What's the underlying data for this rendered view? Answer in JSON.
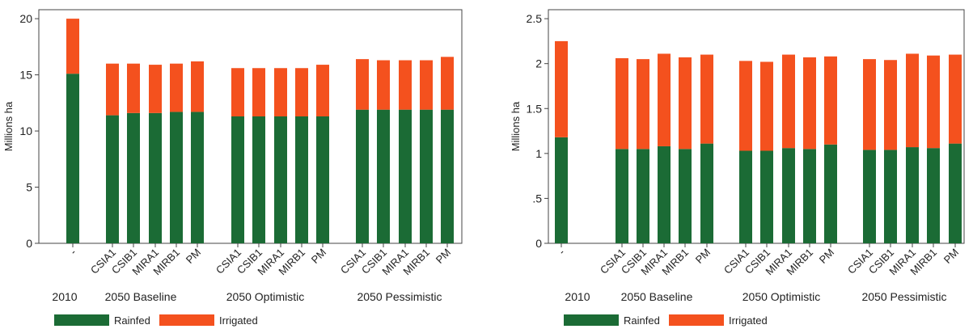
{
  "chart_data": [
    {
      "type": "bar",
      "stacked": true,
      "ylabel": "Millions ha",
      "ylim": [
        0,
        20.8
      ],
      "yticks": [
        "0",
        "5",
        "10",
        "15",
        "20"
      ],
      "ytick_values": [
        0,
        5,
        10,
        15,
        20
      ],
      "categories": [
        "-",
        "CSIA1",
        "CSIB1",
        "MIRA1",
        "MIRB1",
        "PM",
        "CSIA1",
        "CSIB1",
        "MIRA1",
        "MIRB1",
        "PM",
        "CSIA1",
        "CSIB1",
        "MIRA1",
        "MIRB1",
        "PM"
      ],
      "groups": [
        "2010",
        "2050 Baseline",
        "2050 Optimistic",
        "2050 Pessimistic"
      ],
      "series": [
        {
          "name": "Rainfed",
          "color": "#1b6b35",
          "values": [
            15.1,
            11.4,
            11.6,
            11.6,
            11.7,
            11.7,
            11.3,
            11.3,
            11.3,
            11.3,
            11.3,
            11.9,
            11.9,
            11.9,
            11.9,
            11.9
          ]
        },
        {
          "name": "Irrigated",
          "color": "#f4511e",
          "values": [
            4.9,
            4.6,
            4.4,
            4.3,
            4.3,
            4.5,
            4.3,
            4.3,
            4.3,
            4.3,
            4.6,
            4.5,
            4.4,
            4.4,
            4.4,
            4.7
          ]
        }
      ]
    },
    {
      "type": "bar",
      "stacked": true,
      "ylabel": "Millions ha",
      "ylim": [
        0,
        2.6
      ],
      "yticks": [
        "0",
        ".5",
        "1",
        "1.5",
        "2",
        "2.5"
      ],
      "ytick_values": [
        0,
        0.5,
        1,
        1.5,
        2,
        2.5
      ],
      "categories": [
        "-",
        "CSIA1",
        "CSIB1",
        "MIRA1",
        "MIRB1",
        "PM",
        "CSIA1",
        "CSIB1",
        "MIRA1",
        "MIRB1",
        "PM",
        "CSIA1",
        "CSIB1",
        "MIRA1",
        "MIRB1",
        "PM"
      ],
      "groups": [
        "2010",
        "2050 Baseline",
        "2050 Optimistic",
        "2050 Pessimistic"
      ],
      "series": [
        {
          "name": "Rainfed",
          "color": "#1b6b35",
          "values": [
            1.18,
            1.05,
            1.05,
            1.08,
            1.05,
            1.11,
            1.03,
            1.03,
            1.06,
            1.05,
            1.1,
            1.04,
            1.04,
            1.07,
            1.06,
            1.11
          ]
        },
        {
          "name": "Irrigated",
          "color": "#f4511e",
          "values": [
            1.07,
            1.01,
            1.0,
            1.03,
            1.02,
            0.99,
            1.0,
            0.99,
            1.04,
            1.02,
            0.98,
            1.01,
            1.0,
            1.04,
            1.03,
            0.99
          ]
        }
      ]
    }
  ]
}
